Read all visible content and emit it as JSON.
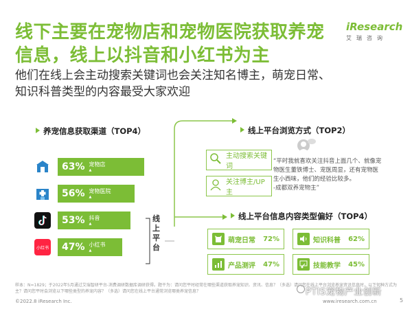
{
  "header": {
    "title_line1": "线下主要在宠物店和宠物医院获取养宠",
    "title_line2": "信息，线上以抖音和小红书为主",
    "subtitle_line1": "他们在线上会主动搜索关键词也会关注知名博主，萌宠日常、",
    "subtitle_line2": "知识科普类型的内容最受大家欢迎"
  },
  "logo": {
    "mark": "iResearch",
    "sub": "艾瑞咨询"
  },
  "channels": {
    "title": "养宠信息获取渠道（TOP4）",
    "items": [
      {
        "pct": "63%",
        "name": "宠物店",
        "value": 63,
        "icon": "store-icon"
      },
      {
        "pct": "56%",
        "name": "宠物医院",
        "value": 56,
        "icon": "hospital-icon"
      },
      {
        "pct": "53%",
        "name": "抖音",
        "value": 53,
        "icon": "douyin-icon"
      },
      {
        "pct": "47%",
        "name": "小红书",
        "value": 47,
        "icon": "xiaohongshu-icon"
      }
    ],
    "online_label": "线上平台",
    "xhs_logo_text": "小红书"
  },
  "browse": {
    "title": "线上平台浏览方式（TOP2）",
    "items": [
      {
        "label": "主动搜索关键词",
        "icon": "search-icon"
      },
      {
        "label": "关注博主/UP主",
        "icon": "blogger-icon"
      }
    ],
    "quote": "“平时我就喜欢关注抖音上面几个、就像宠物医生董铁博士、宠医周显，还有宠物医生小西味，他们的经验比较多。",
    "quote_author": "-成都双养宠物主”"
  },
  "content_types": {
    "title": "线上平台信息内容类型偏好（TOP4）",
    "items": [
      {
        "label": "萌宠日常",
        "pct": "72%",
        "icon": "cat-icon"
      },
      {
        "label": "知识科普",
        "pct": "62%",
        "icon": "speaker-icon"
      },
      {
        "label": "产品测评",
        "pct": "47%",
        "icon": "chart-icon"
      },
      {
        "label": "技能教学",
        "pct": "45%",
        "icon": "teaching-icon"
      }
    ]
  },
  "footer": {
    "note": "样本：N=1829；于2022年5月通过艾瑞智研平台-消费调研数据库调研获得。题干为：请问您平时经常在哪些渠道获取养宠知识、资讯、信息？（多选）请问您在线上平台浏览养宠资讯信息时，以下何种方式为主？请问您平时会浏览以下哪些类型的养宠内容？（多选）请问您在线上平台通常浏览哪类养宠信息？",
    "copyright": "©2022.8 iResearch Inc.",
    "site": "www.iresearch.com.cn",
    "page": "5",
    "watermark": "PTIS宠物产业创新"
  }
}
